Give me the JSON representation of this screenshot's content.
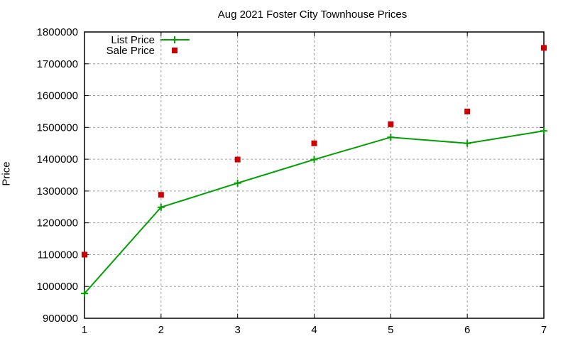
{
  "chart_data": {
    "type": "line",
    "title": "Aug 2021 Foster City Townhouse Prices",
    "xlabel": "",
    "ylabel": "Price",
    "x": [
      1,
      2,
      3,
      4,
      5,
      6,
      7
    ],
    "xlim": [
      1,
      7
    ],
    "ylim": [
      900000,
      1800000
    ],
    "yticks": [
      900000,
      1000000,
      1100000,
      1200000,
      1300000,
      1400000,
      1500000,
      1600000,
      1700000,
      1800000
    ],
    "xticks": [
      1,
      2,
      3,
      4,
      5,
      6,
      7
    ],
    "grid": true,
    "legend_position": "top-left",
    "series": [
      {
        "name": "List Price",
        "style": "linespoints",
        "color": "#00a000",
        "values": [
          978000,
          1249000,
          1325000,
          1399000,
          1469000,
          1450000,
          1489000
        ]
      },
      {
        "name": "Sale Price",
        "style": "points",
        "color": "#cc0000",
        "values": [
          1100000,
          1288000,
          1399000,
          1450000,
          1510000,
          1550000,
          1750000
        ]
      }
    ]
  }
}
